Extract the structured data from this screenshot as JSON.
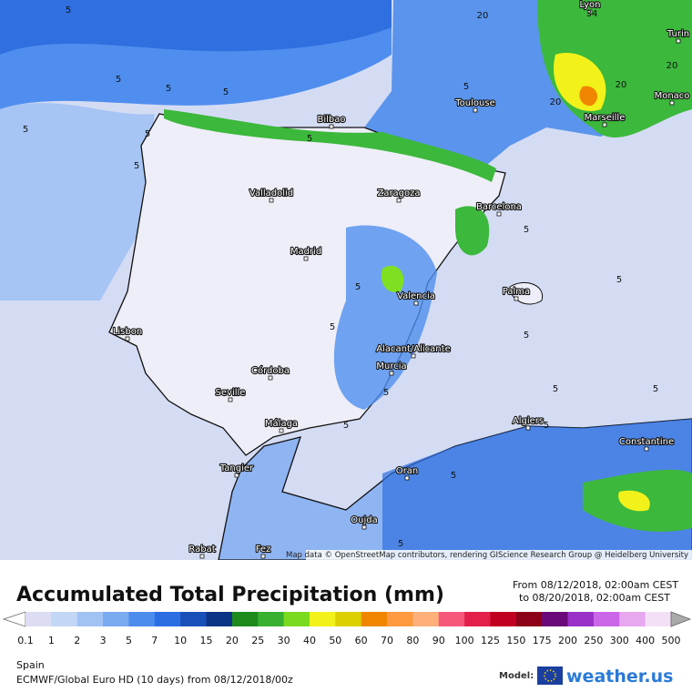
{
  "map": {
    "cities": [
      "Lyon",
      "Turin",
      "Monaco",
      "Toulouse",
      "Marseille",
      "Bilbao",
      "Valladolid",
      "Zaragoza",
      "Barcelona",
      "Madrid",
      "Palma",
      "Valencia",
      "Lisbon",
      "Alacant/Alicante",
      "Murcia",
      "Córdoba",
      "Seville",
      "Algiers",
      "Málaga",
      "Constantine",
      "Tangier",
      "Oran",
      "Oujda",
      "Rabat",
      "Fez"
    ],
    "contour_labels": [
      5,
      5,
      5,
      5,
      5,
      5,
      5,
      5,
      5,
      5,
      5,
      5,
      5,
      5,
      5,
      20,
      20,
      20,
      20,
      34,
      5,
      5,
      5,
      5,
      5,
      5
    ],
    "attribution": "Map data © OpenStreetMap contributors, rendering GIScience Research Group @ Heidelberg University"
  },
  "legend": {
    "title": "Accumulated Total Precipitation (mm)",
    "from": "From 08/12/2018, 02:00am CEST",
    "to": "to 08/20/2018, 02:00am CEST",
    "labels": [
      "0.1",
      "1",
      "2",
      "3",
      "5",
      "7",
      "10",
      "15",
      "20",
      "25",
      "30",
      "40",
      "50",
      "60",
      "70",
      "80",
      "90",
      "100",
      "125",
      "150",
      "175",
      "200",
      "250",
      "300",
      "400",
      "500"
    ],
    "colors": [
      "#dcdcf2",
      "#c2d6f6",
      "#a2c2f4",
      "#7aaaf0",
      "#4c8cec",
      "#2a6ee2",
      "#1850b8",
      "#0b3486",
      "#1d8c1d",
      "#38b030",
      "#7ada1e",
      "#f2f21a",
      "#dcd000",
      "#f08600",
      "#ff9a40",
      "#ffb07a",
      "#f5587a",
      "#e2204a",
      "#c00020",
      "#8c0018",
      "#6a0a7a",
      "#9a30c8",
      "#cc66e8",
      "#e8a8f0",
      "#f4e0f6"
    ],
    "low_color": "#ffffff",
    "high_color": "#aaaaaa"
  },
  "footer": {
    "region": "Spain",
    "model": "ECMWF/Global Euro HD (10 days) from 08/12/2018/00z",
    "model_label": "Model:",
    "brand": "weather.us"
  }
}
